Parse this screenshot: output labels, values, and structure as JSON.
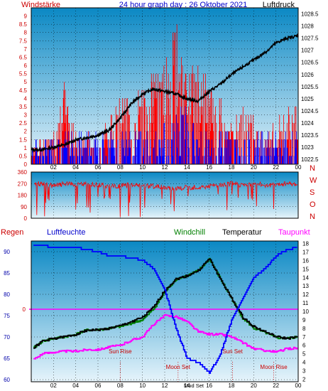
{
  "colors": {
    "bg_top": "#0a88c4",
    "bg_bottom": "#e6f4fb",
    "wind_speed": "#ff0000",
    "gust": "#0000ff",
    "pressure": "#000000",
    "wind_dir": "#ff0000",
    "humidity": "#0000ff",
    "windchill": "#008000",
    "temperature": "#000000",
    "dewpoint": "#ff00ff",
    "axis_red": "#cc0000",
    "axis_blue": "#0000aa",
    "title_blue": "#0000cc",
    "marker_red": "#cc0000"
  },
  "chart_data": [
    {
      "type": "line",
      "title": "24 hour graph day : 26 Oktober 2021",
      "ylabel_left": "Windstärke",
      "ylabel_right": "Luftdruck",
      "x_ticks": [
        "02",
        "04",
        "06",
        "08",
        "10",
        "12",
        "14",
        "16",
        "18",
        "20",
        "22",
        "00"
      ],
      "y_left_ticks": [
        "0",
        "0.5",
        "1",
        "1.5",
        "2",
        "2.5",
        "3",
        "3.5",
        "4",
        "4.5",
        "5",
        "5.5",
        "6",
        "6.5",
        "7",
        "7.5",
        "8",
        "8.5",
        "9"
      ],
      "y_right_ticks": [
        "1022.5",
        "1023",
        "1023.5",
        "1024",
        "1024.5",
        "1025",
        "1025.5",
        "1026",
        "1026.5",
        "1027",
        "1027.5",
        "1028",
        "1028.5"
      ],
      "ylim_left": [
        0,
        9.5
      ],
      "ylim_right": [
        1022.3,
        1028.75
      ],
      "xlim_hours": [
        0,
        24
      ],
      "series": [
        {
          "name": "",
          "kind": "pressure",
          "unit": "hPa",
          "x": [
            0,
            1,
            2,
            3,
            4,
            5,
            6,
            7,
            8,
            9,
            10,
            11,
            12,
            13,
            14,
            15,
            16,
            17,
            18,
            19,
            20,
            21,
            22,
            23,
            24
          ],
          "values": [
            1022.9,
            1022.9,
            1023.0,
            1023.1,
            1023.3,
            1023.4,
            1023.5,
            1023.7,
            1024.2,
            1024.8,
            1025.2,
            1025.4,
            1025.3,
            1025.2,
            1025.0,
            1024.9,
            1025.3,
            1025.6,
            1026.0,
            1026.3,
            1026.6,
            1026.9,
            1027.3,
            1027.5,
            1027.6
          ]
        },
        {
          "name": "",
          "kind": "wind_speed_max",
          "x": [
            0,
            1,
            2,
            3,
            4,
            5,
            6,
            7,
            8,
            9,
            10,
            11,
            12,
            13,
            14,
            15,
            16,
            17,
            18,
            19,
            20,
            21,
            22,
            23,
            24
          ],
          "values": [
            1.5,
            1.5,
            2,
            5,
            2,
            2,
            2,
            3,
            4,
            4,
            5.5,
            6,
            6.5,
            9,
            6,
            6.5,
            5,
            4,
            2.5,
            3.5,
            3,
            2,
            2.5,
            3.5,
            3.5
          ]
        },
        {
          "name": "",
          "kind": "gust_max",
          "x": [
            0,
            1,
            2,
            3,
            4,
            5,
            6,
            7,
            8,
            9,
            10,
            11,
            12,
            13,
            14,
            15,
            16,
            17,
            18,
            19,
            20,
            21,
            22,
            23,
            24
          ],
          "values": [
            1.5,
            1.5,
            2,
            2,
            2,
            2,
            2,
            2,
            2,
            2,
            2,
            2,
            2.5,
            3.5,
            3.5,
            2,
            2,
            2,
            2,
            2,
            2,
            2,
            2,
            2,
            2
          ]
        }
      ]
    },
    {
      "type": "line",
      "title": "",
      "y_ticks": [
        "0",
        "90",
        "180",
        "270",
        "360"
      ],
      "y_right_labels": [
        "N",
        "W",
        "S",
        "O",
        "N"
      ],
      "ylim": [
        0,
        360
      ],
      "xlim_hours": [
        0,
        24
      ],
      "series": [
        {
          "name": "",
          "kind": "wind_direction",
          "unit": "deg",
          "x": [
            0,
            1,
            2,
            3,
            4,
            5,
            6,
            7,
            8,
            9,
            10,
            11,
            12,
            13,
            14,
            15,
            16,
            17,
            18,
            19,
            20,
            21,
            22,
            23,
            24
          ],
          "values": [
            270,
            270,
            250,
            270,
            260,
            270,
            260,
            250,
            250,
            260,
            250,
            250,
            240,
            230,
            240,
            240,
            250,
            260,
            270,
            260,
            270,
            260,
            260,
            270,
            270
          ]
        }
      ]
    },
    {
      "type": "line",
      "title": "",
      "legend": [
        "Regen",
        "Luftfeuchte",
        "Windchill",
        "Temperatur",
        "Taupunkt"
      ],
      "y_left_ticks": [
        "60",
        "65",
        "70",
        "75",
        "80",
        "85",
        "90"
      ],
      "y_left_mid_label": "0",
      "y_right_ticks": [
        "2",
        "3",
        "4",
        "5",
        "6",
        "7",
        "8",
        "9",
        "10",
        "11",
        "12",
        "13",
        "14",
        "15",
        "16",
        "17",
        "18"
      ],
      "ylim_left": [
        59.5,
        92.5
      ],
      "ylim_right": [
        1.7,
        18.3
      ],
      "xlim_hours": [
        0,
        24
      ],
      "annotations": [
        {
          "text": "Sun Rise",
          "hour": 8.0
        },
        {
          "text": "Moon Set",
          "hour": 13.2
        },
        {
          "text": "Sun Set",
          "hour": 18.1
        },
        {
          "text": "Moon Rise",
          "hour": 21.8
        },
        {
          "text": "Mod Set",
          "hour": 15.0
        }
      ],
      "series": [
        {
          "name": "Luftfeuchte",
          "axis": "left",
          "unit": "%",
          "x": [
            0,
            1,
            2,
            3,
            4,
            5,
            6,
            7,
            8,
            9,
            10,
            11,
            12,
            13,
            14,
            15,
            16,
            17,
            18,
            19,
            20,
            21,
            22,
            23,
            24
          ],
          "values": [
            91.5,
            91.5,
            91,
            91,
            91,
            90.5,
            90,
            89,
            89,
            88.5,
            88,
            86,
            81,
            72,
            65,
            64,
            61.5,
            66,
            74,
            79,
            84,
            86,
            89,
            90.5,
            91
          ]
        },
        {
          "name": "Temperatur",
          "axis": "right",
          "unit": "°C",
          "x": [
            0,
            1,
            2,
            3,
            4,
            5,
            6,
            7,
            8,
            9,
            10,
            11,
            12,
            13,
            14,
            15,
            16,
            17,
            18,
            19,
            20,
            21,
            22,
            23,
            24
          ],
          "values": [
            5.5,
            6.5,
            6.8,
            7.0,
            7.3,
            7.8,
            7.8,
            8.0,
            8.3,
            8.8,
            9.3,
            10.5,
            12.5,
            13.8,
            14.2,
            14.8,
            16.2,
            13.8,
            11.5,
            9.3,
            8.2,
            7.6,
            7.0,
            6.8,
            7.0
          ]
        },
        {
          "name": "Windchill",
          "axis": "right",
          "unit": "°C",
          "x": [
            0,
            1,
            2,
            3,
            4,
            5,
            6,
            7,
            8,
            9,
            10,
            11,
            12,
            13,
            14,
            15,
            16,
            17,
            18,
            19,
            20,
            21,
            22,
            23,
            24
          ],
          "values": [
            5.5,
            6.5,
            6.8,
            7.0,
            7.3,
            7.8,
            7.8,
            8.0,
            8.2,
            8.6,
            9.0,
            10.3,
            12.3,
            13.8,
            14.2,
            14.8,
            16.2,
            13.8,
            11.5,
            9.2,
            8.0,
            7.5,
            6.9,
            6.8,
            7.0
          ]
        },
        {
          "name": "Taupunkt",
          "axis": "right",
          "unit": "°C",
          "x": [
            0,
            1,
            2,
            3,
            4,
            5,
            6,
            7,
            8,
            9,
            10,
            11,
            12,
            13,
            14,
            15,
            16,
            17,
            18,
            19,
            20,
            21,
            22,
            23,
            24
          ],
          "values": [
            4.2,
            5.0,
            5.2,
            5.3,
            5.3,
            5.5,
            5.5,
            5.8,
            6.0,
            6.6,
            7.0,
            8.5,
            9.5,
            9.4,
            8.8,
            7.6,
            7.3,
            7.3,
            7.0,
            6.3,
            5.6,
            5.4,
            5.2,
            5.6,
            5.7
          ]
        }
      ]
    }
  ]
}
